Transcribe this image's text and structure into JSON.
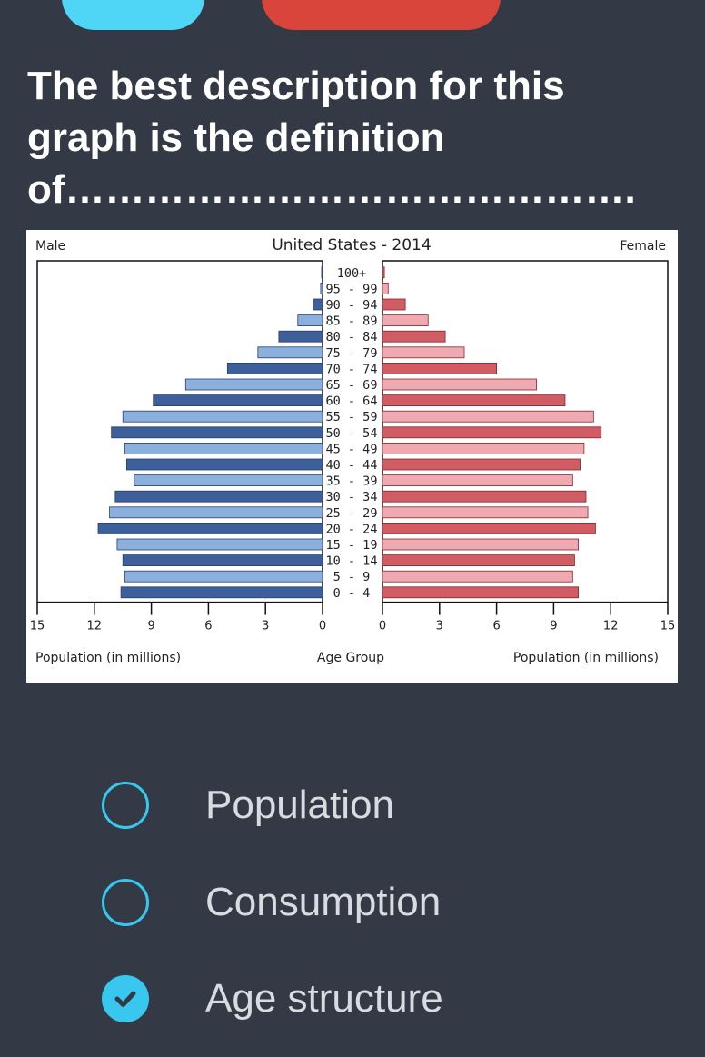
{
  "question": {
    "text": "The best description for this graph is the definition of……………………………………."
  },
  "colors": {
    "background": "#343a45",
    "accent": "#38c8ef",
    "top_left_button": "#4fd6f7",
    "top_right_button": "#d9453a",
    "male_dark": "#3d5f9a",
    "male_light": "#8cb0dd",
    "female_dark": "#d25c63",
    "female_light": "#f0a9b0"
  },
  "chart_data": {
    "type": "bar",
    "title": "United States - 2014",
    "left_label": "Male",
    "right_label": "Female",
    "xlabel_left": "Population (in millions)",
    "xlabel_center": "Age Group",
    "xlabel_right": "Population (in millions)",
    "xlim": [
      0,
      15
    ],
    "ticks": [
      "15",
      "12",
      "9",
      "6",
      "3",
      "0"
    ],
    "ticks_right": [
      "0",
      "3",
      "6",
      "9",
      "12",
      "15"
    ],
    "categories": [
      "100+",
      "95 - 99",
      "90 - 94",
      "85 - 89",
      "80 - 84",
      "75 - 79",
      "70 - 74",
      "65 - 69",
      "60 - 64",
      "55 - 59",
      "50 - 54",
      "45 - 49",
      "40 - 44",
      "35 - 39",
      "30 - 34",
      "25 - 29",
      "20 - 24",
      "15 - 19",
      "10 - 14",
      "5 - 9",
      "0 - 4"
    ],
    "series": [
      {
        "name": "Male",
        "values": [
          0.05,
          0.1,
          0.5,
          1.3,
          2.3,
          3.4,
          5.0,
          7.2,
          8.9,
          10.5,
          11.1,
          10.4,
          10.3,
          9.9,
          10.9,
          11.2,
          11.8,
          10.8,
          10.5,
          10.4,
          10.6
        ]
      },
      {
        "name": "Female",
        "values": [
          0.1,
          0.3,
          1.2,
          2.4,
          3.3,
          4.3,
          6.0,
          8.1,
          9.6,
          11.1,
          11.5,
          10.6,
          10.4,
          10.0,
          10.7,
          10.8,
          11.2,
          10.3,
          10.1,
          10.0,
          10.3
        ]
      }
    ]
  },
  "options": [
    {
      "label": "Population",
      "checked": false
    },
    {
      "label": "Consumption",
      "checked": false
    },
    {
      "label": "Age structure",
      "checked": true
    }
  ]
}
